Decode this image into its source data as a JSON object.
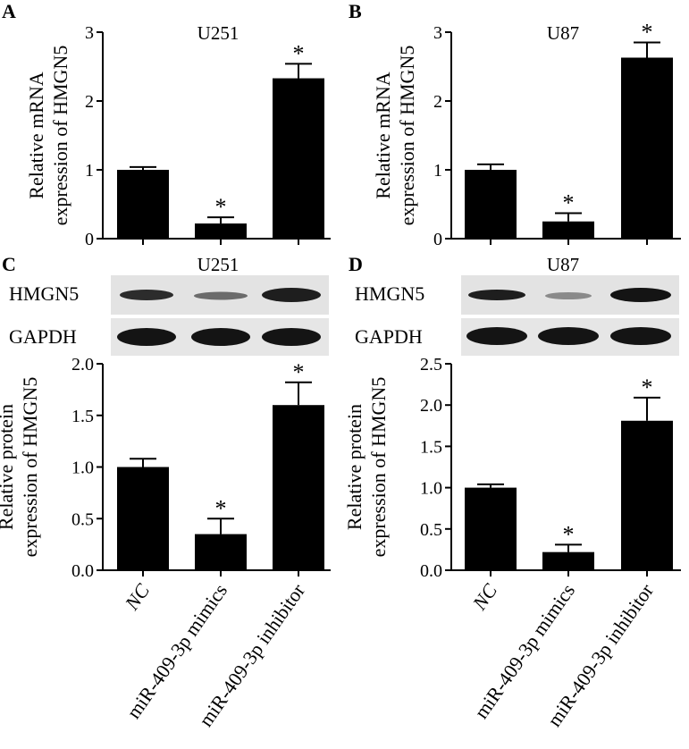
{
  "panels": [
    {
      "letter": "A"
    },
    {
      "letter": "B"
    },
    {
      "letter": "C"
    },
    {
      "letter": "D"
    }
  ],
  "blots": {
    "row_labels": [
      "HMGN5",
      "GAPDH"
    ],
    "titles": [
      "U251",
      "U87"
    ]
  },
  "chart_data": [
    {
      "type": "bar",
      "panel": "A",
      "title": "U251",
      "categories": [
        "NC",
        "miR-409-3p mimics",
        "miR-409-3p inhibitor"
      ],
      "values": [
        1.0,
        0.22,
        2.33
      ],
      "errors": [
        0.04,
        0.09,
        0.21
      ],
      "significance": [
        "",
        "*",
        "*"
      ],
      "ylabel": [
        "Relative mRNA",
        "expression of HMGN5"
      ],
      "ylim": [
        0,
        3
      ],
      "yticks": [
        "0",
        "1",
        "2",
        "3"
      ]
    },
    {
      "type": "bar",
      "panel": "B",
      "title": "U87",
      "categories": [
        "NC",
        "miR-409-3p mimics",
        "miR-409-3p inhibitor"
      ],
      "values": [
        1.0,
        0.25,
        2.63
      ],
      "errors": [
        0.08,
        0.12,
        0.22
      ],
      "significance": [
        "",
        "*",
        "*"
      ],
      "ylabel": [
        "Relative mRNA",
        "expression of HMGN5"
      ],
      "ylim": [
        0,
        3
      ],
      "yticks": [
        "0",
        "1",
        "2",
        "3"
      ]
    },
    {
      "type": "bar",
      "panel": "C",
      "title": "",
      "categories": [
        "NC",
        "miR-409-3p mimics",
        "miR-409-3p inhibitor"
      ],
      "values": [
        1.0,
        0.35,
        1.6
      ],
      "errors": [
        0.08,
        0.15,
        0.22
      ],
      "significance": [
        "",
        "*",
        "*"
      ],
      "ylabel": [
        "Relative protein",
        "expression of HMGN5"
      ],
      "ylim": [
        0,
        2
      ],
      "yticks": [
        "0.0",
        "0.5",
        "1.0",
        "1.5",
        "2.0"
      ]
    },
    {
      "type": "bar",
      "panel": "D",
      "title": "",
      "categories": [
        "NC",
        "miR-409-3p mimics",
        "miR-409-3p inhibitor"
      ],
      "values": [
        1.0,
        0.22,
        1.81
      ],
      "errors": [
        0.04,
        0.09,
        0.28
      ],
      "significance": [
        "",
        "*",
        "*"
      ],
      "ylabel": [
        "Relative protein",
        "expression of HMGN5"
      ],
      "ylim": [
        0,
        2.5
      ],
      "yticks": [
        "0.0",
        "0.5",
        "1.0",
        "1.5",
        "2.0",
        "2.5"
      ]
    }
  ]
}
